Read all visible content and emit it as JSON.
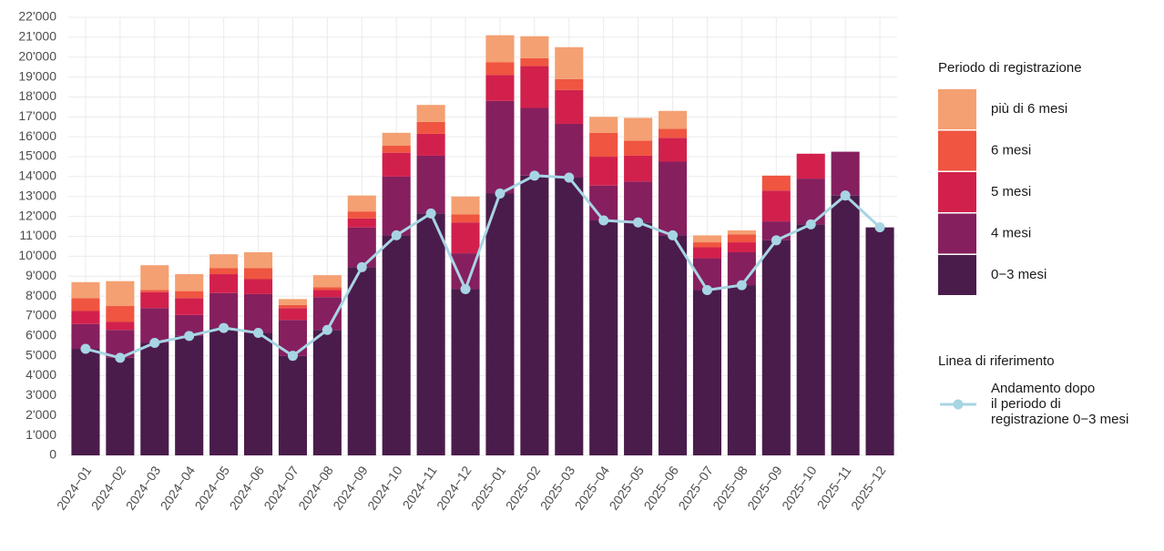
{
  "chart_data": {
    "type": "stacked_bar_line",
    "categories": [
      "2024−01",
      "2024−02",
      "2024−03",
      "2024−04",
      "2024−05",
      "2024−06",
      "2024−07",
      "2024−08",
      "2024−09",
      "2024−10",
      "2024−11",
      "2024−12",
      "2025−01",
      "2025−02",
      "2025−03",
      "2025−04",
      "2025−05",
      "2025−06",
      "2025−07",
      "2025−08",
      "2025−09",
      "2025−10",
      "2025−11",
      "2025−12"
    ],
    "legend_title": "Periodo di registrazione",
    "line_legend_title": "Linea di riferimento",
    "series": [
      {
        "name": "0−3 mesi",
        "color": "#4a1c4b",
        "values": [
          5350,
          4900,
          5650,
          6000,
          6400,
          6150,
          5000,
          6300,
          9450,
          11050,
          12150,
          8350,
          13150,
          14050,
          13950,
          11800,
          11700,
          11050,
          8300,
          8550,
          10800,
          11600,
          13050,
          11450
        ]
      },
      {
        "name": "4 mesi",
        "color": "#861f5e",
        "values": [
          1250,
          1400,
          1750,
          1050,
          1750,
          1950,
          1800,
          1650,
          2000,
          2950,
          2900,
          1800,
          4650,
          3400,
          2700,
          1750,
          2050,
          3700,
          1600,
          1650,
          950,
          2300,
          2200,
          0
        ]
      },
      {
        "name": "5 mesi",
        "color": "#d2204c",
        "values": [
          650,
          400,
          800,
          850,
          950,
          750,
          600,
          350,
          450,
          1200,
          1100,
          1550,
          1300,
          2100,
          1700,
          1450,
          1300,
          1200,
          550,
          500,
          1550,
          1250,
          0,
          0
        ]
      },
      {
        "name": "6 mesi",
        "color": "#ef5540",
        "values": [
          650,
          800,
          100,
          350,
          300,
          550,
          150,
          150,
          350,
          350,
          600,
          400,
          650,
          400,
          550,
          1200,
          750,
          450,
          250,
          400,
          750,
          0,
          0,
          0
        ]
      },
      {
        "name": "più di 6 mesi",
        "color": "#f4a072",
        "values": [
          800,
          1250,
          1250,
          850,
          700,
          800,
          300,
          600,
          800,
          650,
          850,
          900,
          1350,
          1100,
          1600,
          800,
          1150,
          900,
          350,
          200,
          0,
          0,
          0,
          0
        ]
      }
    ],
    "line": {
      "name": "Andamento dopo\nil periodo di\nregistrazione 0−3 mesi",
      "color": "#a7d5e3",
      "values": [
        5350,
        4900,
        5650,
        6000,
        6400,
        6150,
        5000,
        6300,
        9450,
        11050,
        12150,
        8350,
        13150,
        14050,
        13950,
        11800,
        11700,
        11050,
        8300,
        8550,
        10800,
        11600,
        13050,
        11450
      ]
    },
    "ylim": [
      0,
      22000
    ],
    "yticks": [
      0,
      {
        "value": 1000,
        "label": "1'000"
      },
      {
        "value": 2000,
        "label": "2'000"
      },
      {
        "value": 3000,
        "label": "3'000"
      },
      {
        "value": 4000,
        "label": "4'000"
      },
      {
        "value": 5000,
        "label": "5'000"
      },
      {
        "value": 6000,
        "label": "6'000"
      },
      {
        "value": 7000,
        "label": "7'000"
      },
      {
        "value": 8000,
        "label": "8'000"
      },
      {
        "value": 9000,
        "label": "9'000"
      },
      {
        "value": 10000,
        "label": "10'000"
      },
      {
        "value": 11000,
        "label": "11'000"
      },
      {
        "value": 12000,
        "label": "12'000"
      },
      {
        "value": 13000,
        "label": "13'000"
      },
      {
        "value": 14000,
        "label": "14'000"
      },
      {
        "value": 15000,
        "label": "15'000"
      },
      {
        "value": 16000,
        "label": "16'000"
      },
      {
        "value": 17000,
        "label": "17'000"
      },
      {
        "value": 18000,
        "label": "18'000"
      },
      {
        "value": 19000,
        "label": "19'000"
      },
      {
        "value": 20000,
        "label": "20'000"
      },
      {
        "value": 21000,
        "label": "21'000"
      },
      {
        "value": 22000,
        "label": "22'000"
      }
    ],
    "grid": true
  }
}
